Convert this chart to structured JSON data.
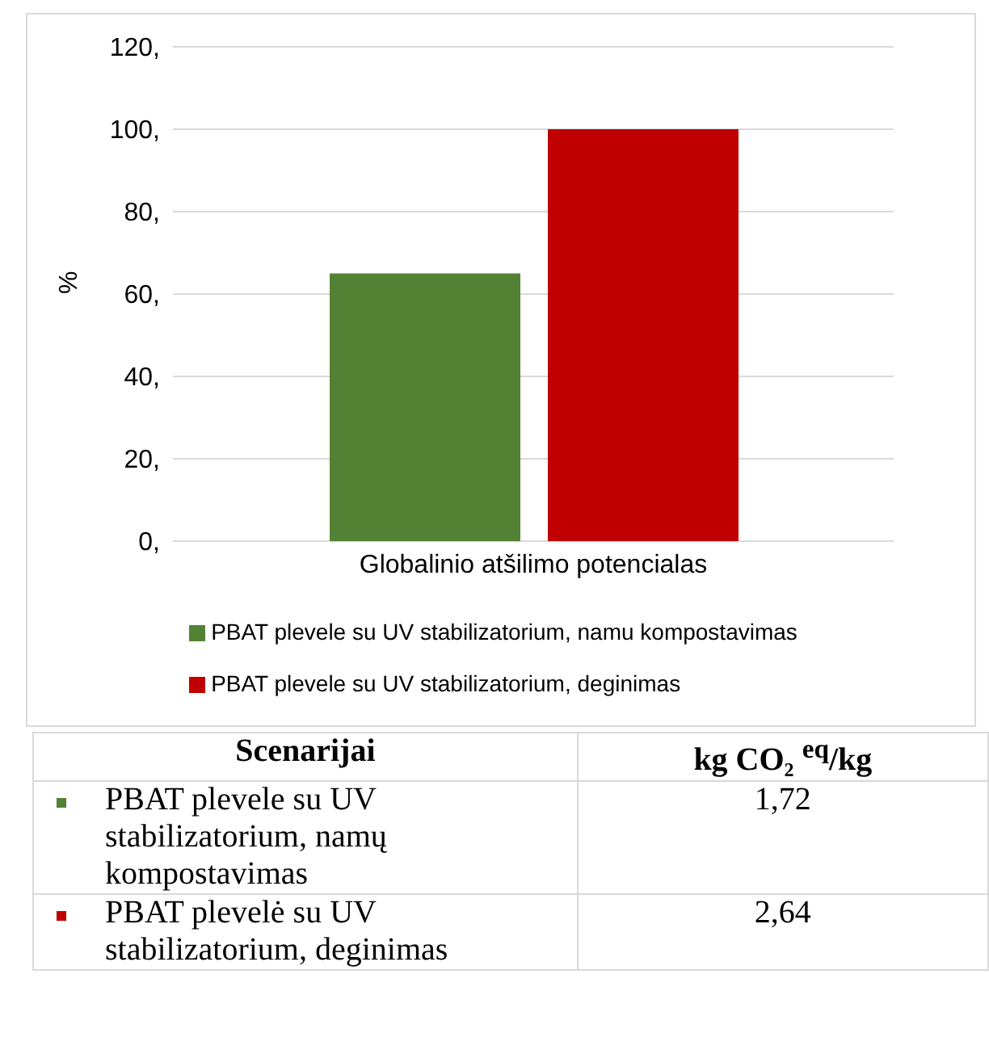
{
  "chart_data": {
    "type": "bar",
    "ylabel": "%",
    "categories": [
      "Globalinio atšilimo potencialas"
    ],
    "series": [
      {
        "name": "PBAT plevele su UV stabilizatorium, namu kompostavimas",
        "color": "#548235",
        "values": [
          65
        ]
      },
      {
        "name": "PBAT plevele su UV stabilizatorium, deginimas",
        "color": "#c00000",
        "values": [
          100
        ]
      }
    ],
    "ylim": [
      0,
      120
    ],
    "yticks": [
      {
        "value": 0,
        "label": "0,"
      },
      {
        "value": 20,
        "label": "20,"
      },
      {
        "value": 40,
        "label": "40,"
      },
      {
        "value": 60,
        "label": "60,"
      },
      {
        "value": 80,
        "label": "80,"
      },
      {
        "value": 100,
        "label": "100,"
      },
      {
        "value": 120,
        "label": "120,"
      }
    ],
    "grid": "y",
    "legend": "bottom",
    "annotations": [
      "Scenarijai",
      "kg CO₂ $^{eq}$/kg",
      "PBAT plevele su UV stabilizatorium, namų kompostavimas",
      "1,72",
      "PBAT plevelė su UV stabilizatorium, deginimas",
      "2,64"
    ]
  }
}
